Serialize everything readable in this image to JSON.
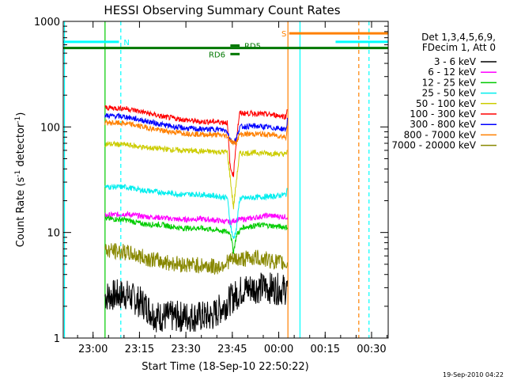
{
  "chart_data": {
    "type": "line",
    "title": "HESSI Observing Summary Count Rates",
    "ylabel_parts": [
      "Count Rate (s",
      "-1",
      " detector",
      "-1",
      ")"
    ],
    "xlabel": "Start Time (18-Sep-10 22:50:22)",
    "footer": "19-Sep-2010 04:22",
    "x_unit": "minutes since 2010-09-18 22:50:22",
    "xlim": [
      0,
      105
    ],
    "ylim": [
      1,
      1000
    ],
    "y_scale": "log",
    "x_ticks": [
      {
        "t": 9.63,
        "label": "23:00"
      },
      {
        "t": 24.63,
        "label": "23:15"
      },
      {
        "t": 39.63,
        "label": "23:30"
      },
      {
        "t": 54.63,
        "label": "23:45"
      },
      {
        "t": 69.63,
        "label": "00:00"
      },
      {
        "t": 84.63,
        "label": "00:15"
      },
      {
        "t": 99.63,
        "label": "00:30"
      }
    ],
    "y_ticks": [
      {
        "v": 1,
        "label": "1"
      },
      {
        "v": 10,
        "label": "10"
      },
      {
        "v": 100,
        "label": "100"
      },
      {
        "v": 1000,
        "label": "1000"
      }
    ],
    "legend": {
      "header": [
        "Det 1,3,4,5,6,9,",
        "FDecim 1, Att 0"
      ],
      "placement": "right"
    },
    "series": [
      {
        "name": "3 - 6 keV",
        "color": "#000000",
        "points": [
          [
            13.5,
            2.5
          ],
          [
            20,
            2.6
          ],
          [
            26,
            2.1
          ],
          [
            30,
            1.6
          ],
          [
            36,
            1.6
          ],
          [
            42,
            1.6
          ],
          [
            48,
            1.6
          ],
          [
            54,
            2.3
          ],
          [
            58,
            2.9
          ],
          [
            62,
            3.0
          ],
          [
            66,
            3.0
          ],
          [
            70,
            2.9
          ],
          [
            72.5,
            2.9
          ]
        ]
      },
      {
        "name": "6 - 12 keV",
        "color": "#ff00ff",
        "points": [
          [
            13.5,
            14.5
          ],
          [
            20,
            15
          ],
          [
            26,
            14.2
          ],
          [
            32,
            13.8
          ],
          [
            38,
            13.2
          ],
          [
            44,
            13.5
          ],
          [
            50,
            13.0
          ],
          [
            54,
            12.5
          ],
          [
            56,
            13.2
          ],
          [
            60,
            13.5
          ],
          [
            66,
            14.5
          ],
          [
            72.5,
            14.0
          ]
        ]
      },
      {
        "name": "12 - 25 keV",
        "color": "#00cc00",
        "points": [
          [
            13.5,
            13.5
          ],
          [
            20,
            13.2
          ],
          [
            26,
            12.0
          ],
          [
            32,
            11.8
          ],
          [
            38,
            11.0
          ],
          [
            44,
            11.0
          ],
          [
            50,
            10.5
          ],
          [
            54,
            10.0
          ],
          [
            55,
            6.5
          ],
          [
            56,
            9.5
          ],
          [
            58,
            11.2
          ],
          [
            64,
            11.8
          ],
          [
            72.5,
            11.2
          ]
        ]
      },
      {
        "name": "25 - 50 keV",
        "color": "#00eeee",
        "points": [
          [
            13.5,
            27
          ],
          [
            20,
            27
          ],
          [
            26,
            25
          ],
          [
            32,
            24
          ],
          [
            38,
            23
          ],
          [
            44,
            23
          ],
          [
            50,
            22
          ],
          [
            53,
            21.5
          ],
          [
            54,
            12
          ],
          [
            55,
            8.5
          ],
          [
            56,
            11
          ],
          [
            57,
            21
          ],
          [
            62,
            21.5
          ],
          [
            68,
            22
          ],
          [
            72,
            23
          ],
          [
            72.5,
            26
          ]
        ]
      },
      {
        "name": "50 - 100 keV",
        "color": "#cccc00",
        "points": [
          [
            13.5,
            69
          ],
          [
            20,
            68
          ],
          [
            26,
            64
          ],
          [
            32,
            62
          ],
          [
            38,
            60
          ],
          [
            44,
            59
          ],
          [
            50,
            58
          ],
          [
            53,
            58
          ],
          [
            54,
            32
          ],
          [
            55,
            17
          ],
          [
            56,
            32
          ],
          [
            57,
            56
          ],
          [
            62,
            57
          ],
          [
            68,
            56
          ],
          [
            72,
            55
          ],
          [
            72.5,
            62
          ]
        ]
      },
      {
        "name": "100 - 300 keV",
        "color": "#ff0000",
        "points": [
          [
            13.5,
            152
          ],
          [
            20,
            150
          ],
          [
            26,
            138
          ],
          [
            32,
            125
          ],
          [
            38,
            118
          ],
          [
            44,
            112
          ],
          [
            50,
            112
          ],
          [
            53,
            110
          ],
          [
            54,
            40
          ],
          [
            55,
            35
          ],
          [
            56,
            80
          ],
          [
            57,
            135
          ],
          [
            62,
            134
          ],
          [
            68,
            130
          ],
          [
            72,
            125
          ],
          [
            72.5,
            160
          ]
        ]
      },
      {
        "name": "300 - 800 keV",
        "color": "#0000ff",
        "points": [
          [
            13.5,
            128
          ],
          [
            20,
            125
          ],
          [
            26,
            115
          ],
          [
            32,
            105
          ],
          [
            38,
            98
          ],
          [
            44,
            95
          ],
          [
            50,
            95
          ],
          [
            53,
            92
          ],
          [
            54,
            75
          ],
          [
            55,
            72
          ],
          [
            56,
            78
          ],
          [
            57,
            100
          ],
          [
            62,
            102
          ],
          [
            68,
            98
          ],
          [
            72,
            95
          ],
          [
            72.5,
            120
          ]
        ]
      },
      {
        "name": "800 - 7000 keV",
        "color": "#ff8000",
        "points": [
          [
            13.5,
            110
          ],
          [
            20,
            108
          ],
          [
            26,
            100
          ],
          [
            32,
            92
          ],
          [
            38,
            88
          ],
          [
            44,
            85
          ],
          [
            50,
            84
          ],
          [
            53,
            82
          ],
          [
            54,
            75
          ],
          [
            55,
            70
          ],
          [
            56,
            72
          ],
          [
            57,
            85
          ],
          [
            62,
            86
          ],
          [
            68,
            84
          ],
          [
            72,
            80
          ],
          [
            72.5,
            110
          ]
        ]
      },
      {
        "name": "7000 - 20000 keV",
        "color": "#888800",
        "points": [
          [
            13.5,
            6.8
          ],
          [
            20,
            6.5
          ],
          [
            26,
            5.8
          ],
          [
            32,
            5.3
          ],
          [
            38,
            5.0
          ],
          [
            44,
            4.9
          ],
          [
            50,
            4.7
          ],
          [
            54,
            5.5
          ],
          [
            58,
            5.6
          ],
          [
            62,
            5.8
          ],
          [
            66,
            5.5
          ],
          [
            70,
            5.2
          ],
          [
            72.5,
            5.0
          ]
        ]
      }
    ],
    "flag_lines": [
      {
        "label": "N",
        "color": "#00ffff",
        "y": 640,
        "x": [
          0,
          18
        ]
      },
      {
        "label": "N",
        "color": "#00ffff",
        "y": 640,
        "x": [
          88,
          105
        ]
      },
      {
        "label": "S",
        "color": "#ff8000",
        "y": 770,
        "x": [
          73,
          105
        ]
      },
      {
        "label": "",
        "color": "#007700",
        "y": 560,
        "x": [
          0,
          105
        ]
      },
      {
        "label": "RD5",
        "color": "#007700",
        "y": 590,
        "x": [
          54,
          57
        ]
      },
      {
        "label": "RD6",
        "color": "#007700",
        "y": 490,
        "x": [
          54,
          57
        ]
      }
    ],
    "flag_labels": [
      {
        "text": "N",
        "color": "#00ffff",
        "t": 19.5,
        "v": 640
      },
      {
        "text": "S",
        "color": "#ff8000",
        "t": 70.5,
        "v": 770
      },
      {
        "text": "RD5",
        "color": "#007700",
        "t": 58.5,
        "v": 590
      },
      {
        "text": "RD6",
        "color": "#007700",
        "t": 47,
        "v": 490
      }
    ],
    "vertical_lines": [
      {
        "t": 0.4,
        "color": "#00ffff",
        "dashed": false
      },
      {
        "t": 13.5,
        "color": "#00cc00",
        "dashed": false
      },
      {
        "t": 18.6,
        "color": "#00ffff",
        "dashed": true
      },
      {
        "t": 72.6,
        "color": "#ff8000",
        "dashed": false
      },
      {
        "t": 76.5,
        "color": "#00ffff",
        "dashed": false
      },
      {
        "t": 95.5,
        "color": "#ff8000",
        "dashed": true
      },
      {
        "t": 98.8,
        "color": "#00ffff",
        "dashed": true
      }
    ]
  }
}
